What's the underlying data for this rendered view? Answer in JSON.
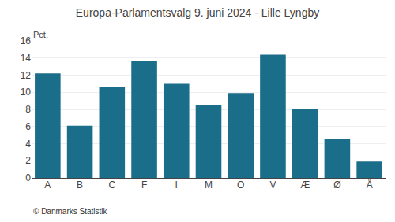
{
  "chart_data": {
    "type": "bar",
    "title": "Europa-Parlamentsvalg 9. juni 2024 - Lille Lyngby",
    "categories": [
      "A",
      "B",
      "C",
      "F",
      "I",
      "M",
      "O",
      "V",
      "Æ",
      "Ø",
      "Å"
    ],
    "values": [
      12.2,
      6.1,
      10.6,
      13.7,
      11.0,
      8.5,
      9.9,
      14.4,
      8.0,
      4.5,
      1.9
    ],
    "color": "#1a6e8a",
    "ylabel": "Pct.",
    "annotations": [
      "© Danmarks Statistik"
    ],
    "ylim": [
      0,
      16
    ],
    "yticks": [
      0,
      2,
      4,
      6,
      8,
      10,
      12,
      14,
      16
    ],
    "grid": true
  }
}
